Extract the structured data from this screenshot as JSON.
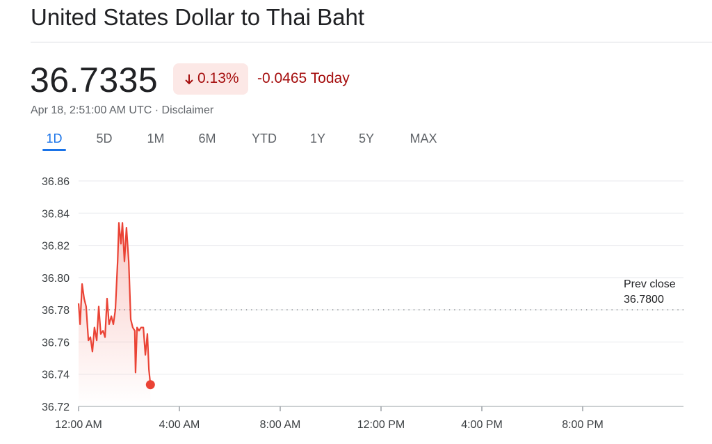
{
  "header": {
    "title": "United States Dollar to Thai Baht",
    "price": "36.7335",
    "change_pct": "0.13%",
    "change": "-0.0465 Today",
    "timestamp": "Apr 18, 2:51:00 AM UTC",
    "separator": "·",
    "disclaimer": "Disclaimer"
  },
  "tabs": [
    "1D",
    "5D",
    "1M",
    "6M",
    "YTD",
    "1Y",
    "5Y",
    "MAX"
  ],
  "active_tab": 0,
  "chart_data": {
    "type": "line",
    "color": "#ea4335",
    "x": [
      0,
      0.06,
      0.14,
      0.22,
      0.3,
      0.39,
      0.47,
      0.55,
      0.63,
      0.72,
      0.8,
      0.88,
      0.97,
      1.05,
      1.13,
      1.21,
      1.3,
      1.38,
      1.46,
      1.55,
      1.6,
      1.68,
      1.74,
      1.82,
      1.9,
      1.99,
      2.07,
      2.15,
      2.23,
      2.26,
      2.32,
      2.4,
      2.48,
      2.57,
      2.65,
      2.73,
      2.79,
      2.85
    ],
    "values": [
      36.784,
      36.771,
      36.796,
      36.787,
      36.782,
      36.761,
      36.763,
      36.754,
      36.769,
      36.761,
      36.782,
      36.765,
      36.767,
      36.763,
      36.787,
      36.771,
      36.776,
      36.771,
      36.78,
      36.81,
      36.834,
      36.821,
      36.834,
      36.81,
      36.831,
      36.81,
      36.774,
      36.769,
      36.767,
      36.741,
      36.769,
      36.767,
      36.769,
      36.769,
      36.752,
      36.765,
      36.743,
      36.7335
    ],
    "xlim": [
      0,
      24
    ],
    "xticks": [
      {
        "value": 0,
        "label": "12:00 AM"
      },
      {
        "value": 4,
        "label": "4:00 AM"
      },
      {
        "value": 8,
        "label": "8:00 AM"
      },
      {
        "value": 12,
        "label": "12:00 PM"
      },
      {
        "value": 16,
        "label": "4:00 PM"
      },
      {
        "value": 20,
        "label": "8:00 PM"
      }
    ],
    "ylim": [
      36.72,
      36.86
    ],
    "yticks": [
      {
        "value": 36.72,
        "label": "36.72"
      },
      {
        "value": 36.74,
        "label": "36.74"
      },
      {
        "value": 36.76,
        "label": "36.76"
      },
      {
        "value": 36.78,
        "label": "36.78"
      },
      {
        "value": 36.8,
        "label": "36.80"
      },
      {
        "value": 36.82,
        "label": "36.82"
      },
      {
        "value": 36.84,
        "label": "36.84"
      },
      {
        "value": 36.86,
        "label": "36.86"
      }
    ],
    "grid": true,
    "prev_close": {
      "label": "Prev close",
      "value": 36.78,
      "value_label": "36.7800"
    }
  }
}
